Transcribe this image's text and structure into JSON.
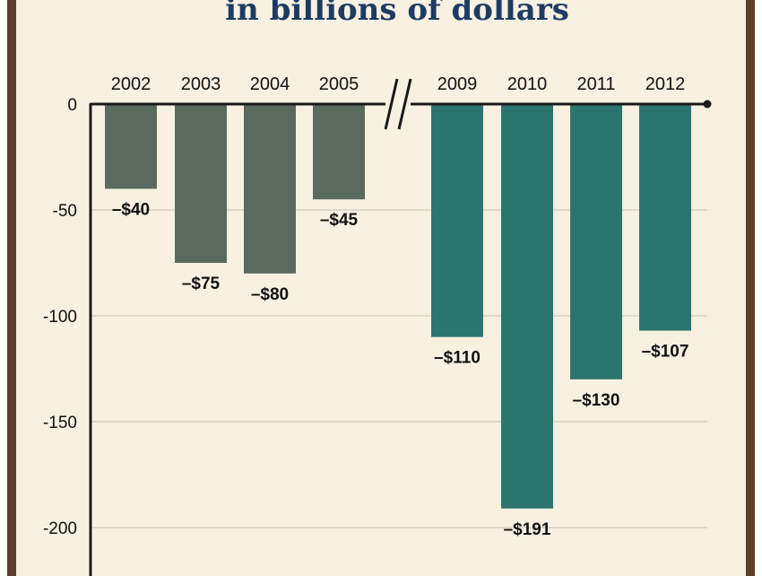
{
  "chart_data": {
    "type": "bar",
    "title": "in billions of dollars",
    "xlabel": "",
    "ylabel": "",
    "ylim": [
      -225,
      0
    ],
    "yticks": [
      0,
      -50,
      -100,
      -150,
      -200
    ],
    "ytick_labels": [
      "0",
      "-50",
      "-100",
      "-150",
      "-200"
    ],
    "grid": true,
    "axis_break_between": [
      "2005",
      "2009"
    ],
    "categories": [
      "2002",
      "2003",
      "2004",
      "2005",
      "2009",
      "2010",
      "2011",
      "2012"
    ],
    "values": [
      -40,
      -75,
      -80,
      -45,
      -110,
      -191,
      -130,
      -107
    ],
    "data_labels": [
      "–$40",
      "–$75",
      "–$80",
      "–$45",
      "–$110",
      "–$191",
      "–$130",
      "–$107"
    ],
    "groups": [
      "early",
      "early",
      "early",
      "early",
      "late",
      "late",
      "late",
      "late"
    ]
  },
  "colors": {
    "early": "#596b5f",
    "late": "#2b756f",
    "background": "#f8f0e1",
    "border": "#5a3e2b",
    "title": "#1d3c63",
    "grid": "#cfc8bd"
  }
}
